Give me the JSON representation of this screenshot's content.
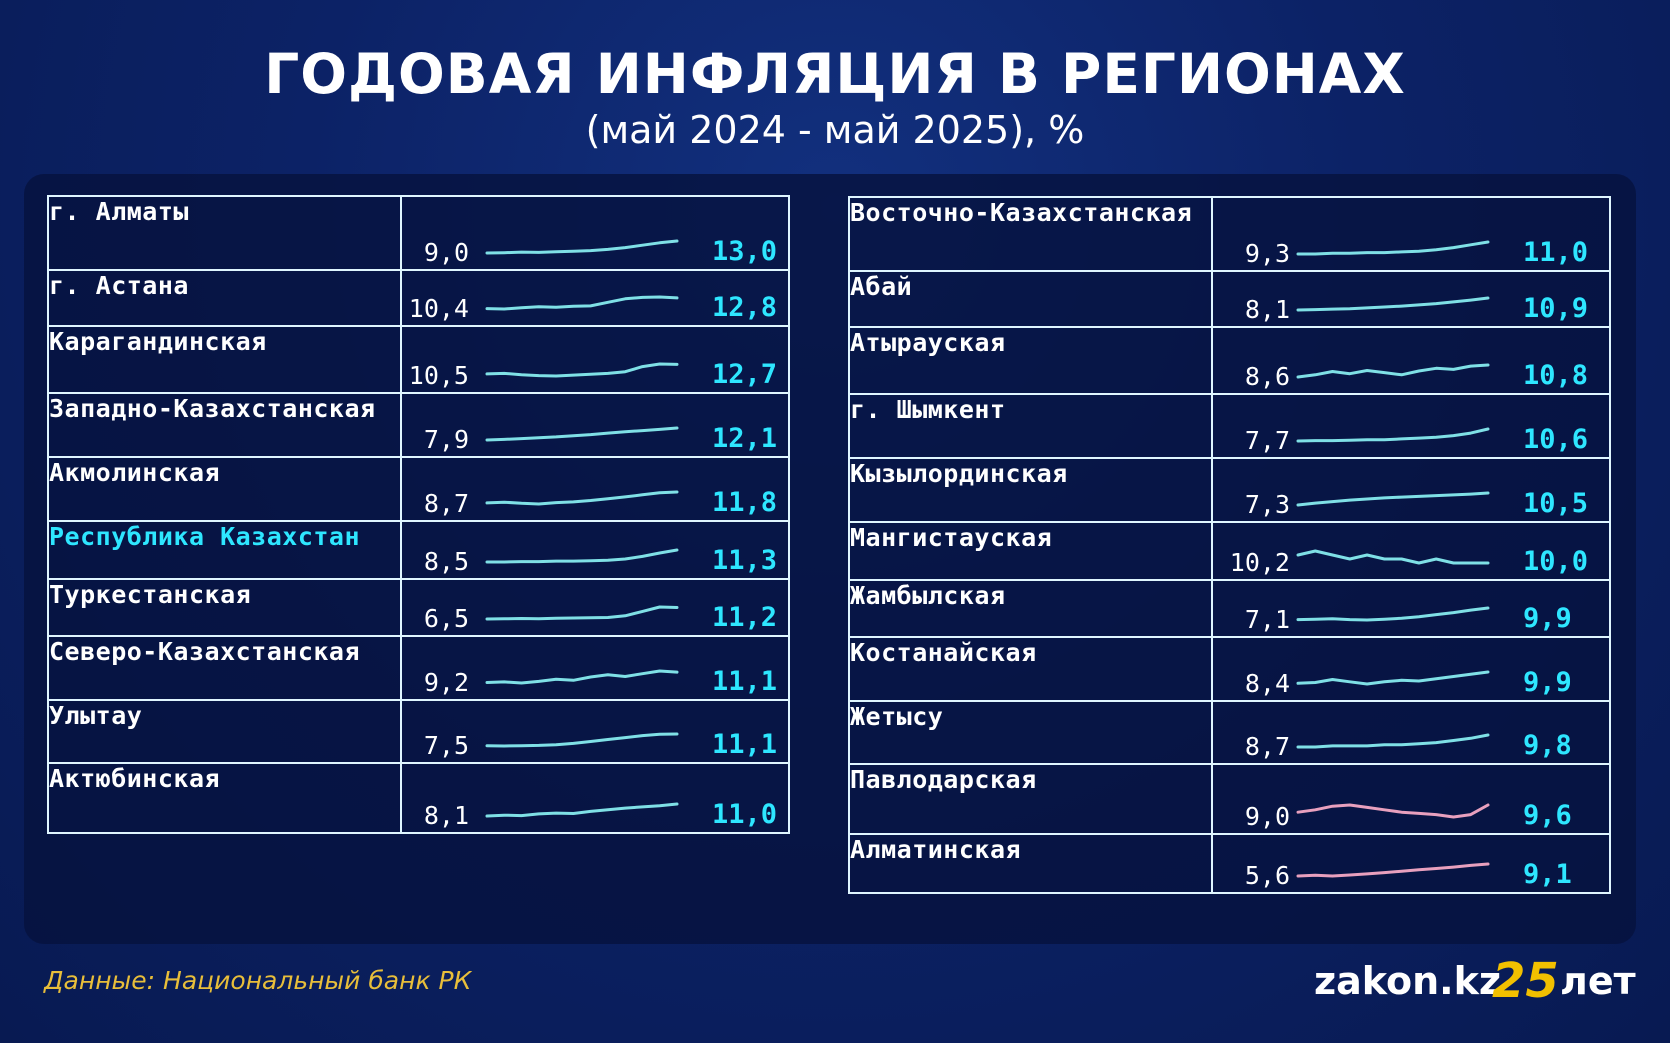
{
  "page": {
    "title": "ГОДОВАЯ ИНФЛЯЦИЯ В РЕГИОНАХ",
    "subtitle": "(май 2024 - май 2025), %",
    "source": "Данные: Национальный банк РК",
    "logo": {
      "brand": "zakon.kz",
      "number": "25",
      "suffix": "лет"
    }
  },
  "colors": {
    "accent": "#2ee6ff",
    "trend_cyan": "#7fe0e6",
    "trend_pink": "#e8a0be",
    "source_text": "#e8be3a",
    "logo_number": "#f2c000"
  },
  "chart_data": {
    "type": "table",
    "title": "ГОДОВАЯ ИНФЛЯЦИЯ В РЕГИОНАХ",
    "subtitle": "(май 2024 - май 2025), %",
    "columns": [
      "region",
      "may_2024",
      "may_2025"
    ],
    "tables": [
      {
        "rows": [
          {
            "region": "г. Алматы",
            "start_label": "9,0",
            "end_label": "13,0",
            "start": 9.0,
            "end": 13.0,
            "trend": [
              9.0,
              9.1,
              9.3,
              9.2,
              9.4,
              9.6,
              9.8,
              10.2,
              10.8,
              11.6,
              12.4,
              13.0
            ]
          },
          {
            "region": "г. Астана",
            "start_label": "10,4",
            "end_label": "12,8",
            "start": 10.4,
            "end": 12.8,
            "trend": [
              10.4,
              10.3,
              10.6,
              10.8,
              10.7,
              10.9,
              11.0,
              11.8,
              12.6,
              12.9,
              13.0,
              12.8
            ]
          },
          {
            "region": "Карагандинская",
            "start_label": "10,5",
            "end_label": "12,7",
            "start": 10.5,
            "end": 12.7,
            "trend": [
              10.5,
              10.6,
              10.3,
              10.1,
              10.0,
              10.2,
              10.4,
              10.6,
              11.0,
              12.2,
              12.8,
              12.7
            ]
          },
          {
            "region": "Западно-Казахстанская",
            "start_label": "7,9",
            "end_label": "12,1",
            "start": 7.9,
            "end": 12.1,
            "trend": [
              7.9,
              8.1,
              8.4,
              8.7,
              9.0,
              9.4,
              9.8,
              10.3,
              10.8,
              11.2,
              11.6,
              12.1
            ]
          },
          {
            "region": "Акмолинская",
            "start_label": "8,7",
            "end_label": "11,8",
            "start": 8.7,
            "end": 11.8,
            "trend": [
              8.7,
              8.9,
              8.6,
              8.4,
              8.8,
              9.0,
              9.4,
              9.9,
              10.4,
              11.0,
              11.6,
              11.8
            ]
          },
          {
            "region": "Республика Казахстан",
            "start_label": "8,5",
            "end_label": "11,3",
            "start": 8.5,
            "end": 11.3,
            "highlight": true,
            "trend": [
              8.5,
              8.5,
              8.6,
              8.6,
              8.7,
              8.7,
              8.8,
              8.9,
              9.2,
              9.8,
              10.6,
              11.3
            ]
          },
          {
            "region": "Туркестанская",
            "start_label": "6,5",
            "end_label": "11,2",
            "start": 6.5,
            "end": 11.2,
            "trend": [
              6.5,
              6.6,
              6.7,
              6.6,
              6.8,
              6.9,
              7.0,
              7.1,
              7.8,
              9.6,
              11.4,
              11.2
            ]
          },
          {
            "region": "Северо-Казахстанская",
            "start_label": "9,2",
            "end_label": "11,1",
            "start": 9.2,
            "end": 11.1,
            "trend": [
              9.2,
              9.3,
              9.1,
              9.4,
              9.8,
              9.6,
              10.2,
              10.6,
              10.3,
              10.8,
              11.3,
              11.1
            ]
          },
          {
            "region": "Улытау",
            "start_label": "7,5",
            "end_label": "11,1",
            "start": 7.5,
            "end": 11.1,
            "trend": [
              7.5,
              7.4,
              7.5,
              7.6,
              7.8,
              8.2,
              8.8,
              9.4,
              10.0,
              10.6,
              11.0,
              11.1
            ]
          },
          {
            "region": "Актюбинская",
            "start_label": "8,1",
            "end_label": "11,0",
            "start": 8.1,
            "end": 11.0,
            "trend": [
              8.1,
              8.3,
              8.2,
              8.6,
              8.8,
              8.7,
              9.2,
              9.6,
              10.0,
              10.3,
              10.6,
              11.0
            ]
          }
        ]
      },
      {
        "rows": [
          {
            "region": "Восточно-Казахстанская",
            "start_label": "9,3",
            "end_label": "11,0",
            "start": 9.3,
            "end": 11.0,
            "trend": [
              9.3,
              9.3,
              9.4,
              9.4,
              9.5,
              9.5,
              9.6,
              9.7,
              9.9,
              10.2,
              10.6,
              11.0
            ]
          },
          {
            "region": "Абай",
            "start_label": "8,1",
            "end_label": "10,9",
            "start": 8.1,
            "end": 10.9,
            "trend": [
              8.1,
              8.2,
              8.3,
              8.4,
              8.6,
              8.8,
              9.0,
              9.3,
              9.6,
              10.0,
              10.4,
              10.9
            ]
          },
          {
            "region": "Атырауская",
            "start_label": "8,6",
            "end_label": "10,8",
            "start": 8.6,
            "end": 10.8,
            "trend": [
              8.6,
              9.0,
              9.6,
              9.2,
              9.8,
              9.4,
              9.0,
              9.7,
              10.2,
              10.0,
              10.6,
              10.8
            ]
          },
          {
            "region": "г. Шымкент",
            "start_label": "7,7",
            "end_label": "10,6",
            "start": 7.7,
            "end": 10.6,
            "trend": [
              7.7,
              7.8,
              7.8,
              7.9,
              8.0,
              8.0,
              8.2,
              8.4,
              8.6,
              9.0,
              9.6,
              10.6
            ]
          },
          {
            "region": "Кызылординская",
            "start_label": "7,3",
            "end_label": "10,5",
            "start": 7.3,
            "end": 10.5,
            "trend": [
              7.3,
              7.8,
              8.2,
              8.6,
              8.9,
              9.2,
              9.4,
              9.6,
              9.8,
              10.0,
              10.2,
              10.5
            ]
          },
          {
            "region": "Мангистауская",
            "start_label": "10,2",
            "end_label": "10,0",
            "start": 10.2,
            "end": 10.0,
            "trend": [
              10.2,
              10.3,
              10.2,
              10.1,
              10.2,
              10.1,
              10.1,
              10.0,
              10.1,
              10.0,
              10.0,
              10.0
            ]
          },
          {
            "region": "Жамбылская",
            "start_label": "7,1",
            "end_label": "9,9",
            "start": 7.1,
            "end": 9.9,
            "trend": [
              7.1,
              7.2,
              7.3,
              7.1,
              7.0,
              7.2,
              7.4,
              7.8,
              8.3,
              8.8,
              9.4,
              9.9
            ]
          },
          {
            "region": "Костанайская",
            "start_label": "8,4",
            "end_label": "9,9",
            "start": 8.4,
            "end": 9.9,
            "trend": [
              8.4,
              8.5,
              8.9,
              8.6,
              8.3,
              8.6,
              8.8,
              8.7,
              9.0,
              9.3,
              9.6,
              9.9
            ]
          },
          {
            "region": "Жетысу",
            "start_label": "8,7",
            "end_label": "9,8",
            "start": 8.7,
            "end": 9.8,
            "trend": [
              8.7,
              8.7,
              8.8,
              8.8,
              8.8,
              8.9,
              8.9,
              9.0,
              9.1,
              9.3,
              9.5,
              9.8
            ]
          },
          {
            "region": "Павлодарская",
            "start_label": "9,0",
            "end_label": "9,6",
            "start": 9.0,
            "end": 9.6,
            "trend_color": "pink",
            "trend": [
              9.0,
              9.2,
              9.5,
              9.6,
              9.4,
              9.2,
              9.0,
              8.9,
              8.8,
              8.6,
              8.8,
              9.6
            ]
          },
          {
            "region": "Алматинская",
            "start_label": "5,6",
            "end_label": "9,1",
            "start": 5.6,
            "end": 9.1,
            "trend_color": "pink",
            "trend": [
              5.6,
              5.8,
              5.6,
              5.9,
              6.2,
              6.6,
              7.0,
              7.4,
              7.8,
              8.2,
              8.7,
              9.1
            ]
          }
        ]
      }
    ]
  }
}
